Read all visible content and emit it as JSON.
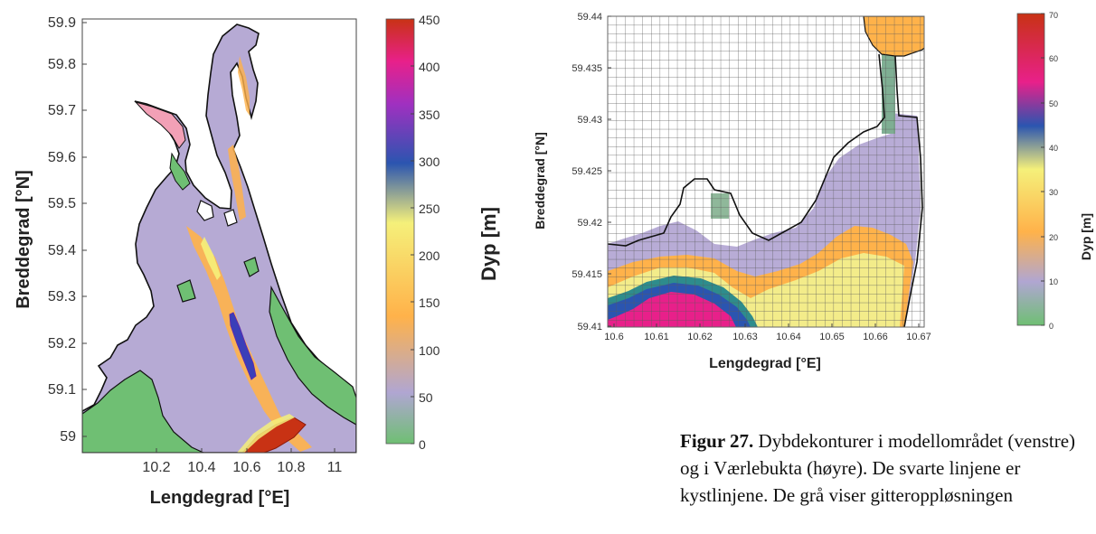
{
  "chart_data": [
    {
      "type": "heatmap",
      "title": "",
      "xlabel": "Lengdegrad [°E]",
      "ylabel": "Breddegrad [°N]",
      "xticks": [
        "10.2",
        "10.4",
        "10.6",
        "10.8",
        "11"
      ],
      "yticks": [
        "59",
        "59.1",
        "59.2",
        "59.3",
        "59.4",
        "59.5",
        "59.6",
        "59.7",
        "59.8",
        "59.9"
      ],
      "xlim": [
        10.0,
        11.17
      ],
      "ylim": [
        58.98,
        59.93
      ],
      "colorbar": {
        "label": "Dyp [m]",
        "range": [
          0,
          450
        ],
        "ticks": [
          "0",
          "50",
          "100",
          "150",
          "200",
          "250",
          "300",
          "350",
          "400",
          "450"
        ]
      },
      "grid": false
    },
    {
      "type": "heatmap",
      "title": "",
      "xlabel": "Lengdegrad [°E]",
      "ylabel": "Breddegrad [°N]",
      "xticks": [
        "10.6",
        "10.61",
        "10.62",
        "10.63",
        "10.64",
        "10.65",
        "10.66",
        "10.67"
      ],
      "yticks": [
        "59.41",
        "59.415",
        "59.42",
        "59.425",
        "59.43",
        "59.435",
        "59.44"
      ],
      "xlim": [
        10.6,
        10.67
      ],
      "ylim": [
        59.41,
        59.44
      ],
      "colorbar": {
        "label": "Dyp [m]",
        "range": [
          0,
          70
        ],
        "ticks": [
          "0",
          "10",
          "20",
          "30",
          "40",
          "50",
          "60",
          "70"
        ]
      },
      "grid": true
    }
  ],
  "caption": {
    "label": "Figur 27.",
    "text": " Dybdekonturer i modellområdet (venstre) og i Værlebukta (høyre). De svarte linjene er kystlinjene. De grå viser gitteroppløsningen"
  },
  "colors": {
    "scale": [
      "#6fbf73",
      "#b0a6d2",
      "#ffb24a",
      "#f5f07a",
      "#2b55b0",
      "#e8208a",
      "#c83214"
    ]
  }
}
